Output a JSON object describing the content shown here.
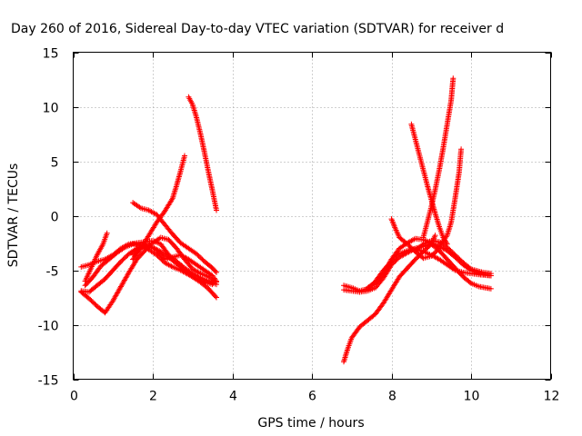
{
  "chart_data": {
    "type": "scatter",
    "title": "Day 260 of 2016, Sidereal Day-to-day VTEC variation (SDTVAR) for receiver d",
    "xlabel": "GPS time / hours",
    "ylabel": "SDTVAR / TECUs",
    "xlim": [
      0,
      12
    ],
    "ylim": [
      -15,
      15
    ],
    "xticks": [
      0,
      2,
      4,
      6,
      8,
      10,
      12
    ],
    "yticks": [
      -15,
      -10,
      -5,
      0,
      5,
      10,
      15
    ],
    "grid": true,
    "legend": "none",
    "marker": "+",
    "color": "#ff0000",
    "series": [
      {
        "points": [
          [
            0.2,
            -4.7
          ],
          [
            0.4,
            -4.5
          ],
          [
            0.6,
            -4.2
          ],
          [
            0.8,
            -4.0
          ],
          [
            1.0,
            -3.6
          ],
          [
            1.2,
            -3.0
          ],
          [
            1.4,
            -2.6
          ],
          [
            1.6,
            -2.5
          ],
          [
            1.8,
            -2.4
          ],
          [
            2.0,
            -2.3
          ],
          [
            2.2,
            -2.6
          ],
          [
            2.4,
            -3.6
          ],
          [
            2.6,
            -4.2
          ],
          [
            2.8,
            -4.8
          ],
          [
            3.0,
            -5.3
          ],
          [
            3.2,
            -5.7
          ],
          [
            3.4,
            -6.0
          ],
          [
            3.6,
            -6.3
          ]
        ]
      },
      {
        "points": [
          [
            0.2,
            -7.0
          ],
          [
            0.4,
            -7.6
          ],
          [
            0.6,
            -8.3
          ],
          [
            0.8,
            -8.9
          ],
          [
            1.0,
            -7.8
          ],
          [
            1.2,
            -6.5
          ],
          [
            1.4,
            -5.2
          ],
          [
            1.6,
            -4.0
          ],
          [
            1.8,
            -3.2
          ],
          [
            2.0,
            -2.5
          ],
          [
            2.2,
            -2.0
          ],
          [
            2.4,
            -2.2
          ],
          [
            2.6,
            -3.0
          ],
          [
            2.8,
            -4.0
          ],
          [
            3.0,
            -4.9
          ],
          [
            3.2,
            -5.3
          ],
          [
            3.4,
            -5.6
          ],
          [
            3.6,
            -6.1
          ]
        ]
      },
      {
        "points": [
          [
            0.3,
            -6.4
          ],
          [
            0.5,
            -5.6
          ],
          [
            0.7,
            -4.6
          ],
          [
            0.9,
            -4.0
          ],
          [
            1.1,
            -3.4
          ],
          [
            1.3,
            -2.9
          ],
          [
            1.5,
            -2.6
          ],
          [
            1.7,
            -2.7
          ],
          [
            1.9,
            -3.1
          ],
          [
            2.1,
            -3.6
          ],
          [
            2.3,
            -4.3
          ],
          [
            2.5,
            -4.7
          ],
          [
            2.7,
            -5.0
          ],
          [
            2.9,
            -5.4
          ],
          [
            3.1,
            -5.8
          ],
          [
            3.3,
            -6.1
          ],
          [
            3.5,
            -6.3
          ]
        ]
      },
      {
        "points": [
          [
            0.2,
            -6.9
          ],
          [
            0.4,
            -7.0
          ],
          [
            0.6,
            -6.4
          ],
          [
            0.8,
            -5.8
          ],
          [
            1.0,
            -5.0
          ],
          [
            1.2,
            -4.2
          ],
          [
            1.4,
            -3.5
          ],
          [
            1.6,
            -3.0
          ],
          [
            1.8,
            -2.8
          ],
          [
            2.0,
            -2.9
          ],
          [
            2.2,
            -3.3
          ],
          [
            2.4,
            -3.8
          ],
          [
            2.6,
            -4.4
          ],
          [
            2.8,
            -5.0
          ],
          [
            3.0,
            -5.6
          ],
          [
            3.2,
            -6.1
          ],
          [
            3.4,
            -6.7
          ],
          [
            3.6,
            -7.5
          ]
        ]
      },
      {
        "points": [
          [
            0.3,
            -6.0
          ],
          [
            0.45,
            -4.8
          ],
          [
            0.6,
            -3.6
          ],
          [
            0.75,
            -2.6
          ],
          [
            0.85,
            -1.6
          ]
        ]
      },
      {
        "points": [
          [
            1.5,
            -3.6
          ],
          [
            1.7,
            -2.9
          ],
          [
            1.9,
            -2.7
          ],
          [
            2.1,
            -3.2
          ],
          [
            2.3,
            -4.0
          ],
          [
            2.5,
            -3.8
          ],
          [
            2.7,
            -3.6
          ],
          [
            2.9,
            -4.0
          ],
          [
            3.1,
            -4.5
          ],
          [
            3.3,
            -5.0
          ],
          [
            3.5,
            -5.5
          ],
          [
            3.6,
            -6.0
          ]
        ]
      },
      {
        "points": [
          [
            1.5,
            1.2
          ],
          [
            1.7,
            0.7
          ],
          [
            1.9,
            0.5
          ],
          [
            2.1,
            0.1
          ],
          [
            2.3,
            -0.8
          ],
          [
            2.5,
            -1.7
          ],
          [
            2.7,
            -2.5
          ],
          [
            2.9,
            -3.0
          ],
          [
            3.1,
            -3.5
          ],
          [
            3.3,
            -4.2
          ],
          [
            3.5,
            -4.8
          ],
          [
            3.6,
            -5.2
          ]
        ]
      },
      {
        "points": [
          [
            1.5,
            -4.0
          ],
          [
            1.7,
            -3.0
          ],
          [
            1.9,
            -1.8
          ],
          [
            2.1,
            -0.6
          ],
          [
            2.3,
            0.4
          ],
          [
            2.5,
            1.6
          ],
          [
            2.6,
            2.8
          ],
          [
            2.7,
            4.1
          ],
          [
            2.8,
            5.5
          ]
        ]
      },
      {
        "points": [
          [
            2.9,
            10.9
          ],
          [
            3.0,
            10.2
          ],
          [
            3.1,
            9.0
          ],
          [
            3.2,
            7.5
          ],
          [
            3.3,
            5.8
          ],
          [
            3.4,
            4.0
          ],
          [
            3.5,
            2.3
          ],
          [
            3.6,
            0.5
          ]
        ]
      },
      {
        "points": [
          [
            6.8,
            -13.4
          ],
          [
            6.9,
            -12.2
          ],
          [
            7.0,
            -11.2
          ],
          [
            7.2,
            -10.2
          ],
          [
            7.4,
            -9.6
          ],
          [
            7.6,
            -9.0
          ],
          [
            7.8,
            -8.0
          ],
          [
            8.0,
            -6.8
          ],
          [
            8.2,
            -5.6
          ],
          [
            8.4,
            -4.8
          ],
          [
            8.6,
            -4.0
          ],
          [
            8.8,
            -3.3
          ],
          [
            9.0,
            -2.6
          ],
          [
            9.1,
            -1.8
          ]
        ]
      },
      {
        "points": [
          [
            6.8,
            -6.4
          ],
          [
            7.0,
            -6.6
          ],
          [
            7.2,
            -6.9
          ],
          [
            7.4,
            -6.7
          ],
          [
            7.6,
            -6.0
          ],
          [
            7.8,
            -5.0
          ],
          [
            8.0,
            -4.2
          ],
          [
            8.2,
            -3.5
          ],
          [
            8.4,
            -3.2
          ],
          [
            8.6,
            -3.0
          ],
          [
            8.8,
            -3.3
          ],
          [
            9.0,
            -3.6
          ],
          [
            9.2,
            -4.0
          ],
          [
            9.4,
            -4.5
          ],
          [
            9.6,
            -5.0
          ],
          [
            9.8,
            -5.2
          ],
          [
            10.0,
            -5.3
          ],
          [
            10.2,
            -5.4
          ],
          [
            10.5,
            -5.5
          ]
        ]
      },
      {
        "points": [
          [
            6.8,
            -6.8
          ],
          [
            7.0,
            -6.9
          ],
          [
            7.2,
            -7.0
          ],
          [
            7.4,
            -6.9
          ],
          [
            7.6,
            -6.6
          ],
          [
            7.8,
            -5.7
          ],
          [
            8.0,
            -4.5
          ],
          [
            8.2,
            -3.8
          ],
          [
            8.4,
            -3.4
          ],
          [
            8.6,
            -3.0
          ],
          [
            8.8,
            -2.8
          ],
          [
            9.0,
            -2.6
          ],
          [
            9.2,
            -3.2
          ],
          [
            9.4,
            -4.0
          ],
          [
            9.6,
            -4.8
          ],
          [
            9.8,
            -5.6
          ],
          [
            10.0,
            -6.2
          ],
          [
            10.2,
            -6.5
          ],
          [
            10.5,
            -6.7
          ]
        ]
      },
      {
        "points": [
          [
            7.4,
            -6.6
          ],
          [
            7.6,
            -6.2
          ],
          [
            7.8,
            -5.3
          ],
          [
            8.0,
            -4.0
          ],
          [
            8.2,
            -3.0
          ],
          [
            8.4,
            -2.5
          ],
          [
            8.6,
            -2.1
          ],
          [
            8.8,
            -2.2
          ],
          [
            9.0,
            -2.5
          ],
          [
            9.2,
            -2.8
          ],
          [
            9.4,
            -3.2
          ],
          [
            9.6,
            -3.8
          ],
          [
            9.8,
            -4.5
          ],
          [
            10.0,
            -5.0
          ],
          [
            10.2,
            -5.3
          ],
          [
            10.5,
            -5.5
          ]
        ]
      },
      {
        "points": [
          [
            8.0,
            -0.3
          ],
          [
            8.1,
            -1.2
          ],
          [
            8.2,
            -2.0
          ],
          [
            8.4,
            -2.6
          ],
          [
            8.6,
            -3.3
          ],
          [
            8.8,
            -3.9
          ],
          [
            9.0,
            -3.7
          ],
          [
            9.2,
            -3.0
          ]
        ]
      },
      {
        "points": [
          [
            8.5,
            8.4
          ],
          [
            8.6,
            7.0
          ],
          [
            8.7,
            5.6
          ],
          [
            8.8,
            4.2
          ],
          [
            8.9,
            2.8
          ],
          [
            9.0,
            1.5
          ],
          [
            9.1,
            0.2
          ],
          [
            9.2,
            -1.0
          ],
          [
            9.3,
            -2.0
          ],
          [
            9.4,
            -2.6
          ]
        ]
      },
      {
        "points": [
          [
            8.8,
            -2.0
          ],
          [
            8.9,
            -0.6
          ],
          [
            9.0,
            0.8
          ],
          [
            9.1,
            2.4
          ],
          [
            9.2,
            4.2
          ],
          [
            9.3,
            6.2
          ],
          [
            9.4,
            8.4
          ],
          [
            9.5,
            10.6
          ],
          [
            9.55,
            12.6
          ]
        ]
      },
      {
        "points": [
          [
            9.2,
            -2.7
          ],
          [
            9.3,
            -2.3
          ],
          [
            9.4,
            -1.8
          ],
          [
            9.5,
            -0.6
          ],
          [
            9.6,
            1.6
          ],
          [
            9.7,
            4.0
          ],
          [
            9.75,
            6.1
          ]
        ]
      },
      {
        "points": [
          [
            8.6,
            -3.2
          ],
          [
            8.8,
            -2.6
          ],
          [
            9.0,
            -2.3
          ],
          [
            9.2,
            -2.4
          ],
          [
            9.4,
            -2.9
          ],
          [
            9.6,
            -3.6
          ],
          [
            9.8,
            -4.3
          ],
          [
            10.0,
            -4.9
          ],
          [
            10.3,
            -5.2
          ],
          [
            10.5,
            -5.3
          ]
        ]
      }
    ]
  }
}
